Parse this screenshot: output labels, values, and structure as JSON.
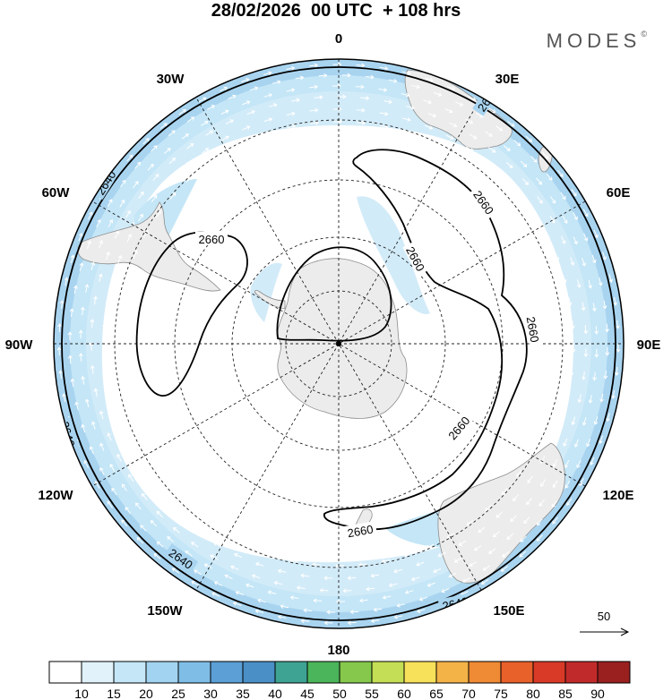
{
  "title": "28/02/2026  00 UTC  + 108 hrs",
  "brand": "MODES",
  "brand_mark": "©",
  "longitude_labels": [
    "0",
    "30E",
    "60E",
    "90E",
    "120E",
    "150E",
    "180",
    "150W",
    "120W",
    "90W",
    "60W",
    "30W"
  ],
  "contours": [
    {
      "value": "2640",
      "level": 2640
    },
    {
      "value": "2660",
      "level": 2660
    }
  ],
  "wind_reference": {
    "label": "50",
    "value": 50
  },
  "colorbar": {
    "labels": [
      "10",
      "15",
      "20",
      "25",
      "30",
      "35",
      "40",
      "45",
      "50",
      "55",
      "60",
      "65",
      "70",
      "75",
      "80",
      "85",
      "90"
    ],
    "colors": [
      "#ffffff",
      "#e1f2fb",
      "#c4e6f7",
      "#a2d3f0",
      "#7fbde6",
      "#5b9fd6",
      "#4a8fc6",
      "#3ea393",
      "#4ab55a",
      "#86c84c",
      "#c4de55",
      "#f7e05a",
      "#f3b347",
      "#ef8a35",
      "#e8602a",
      "#d83a27",
      "#c12a2a",
      "#9a1f1f"
    ]
  },
  "colors": {
    "land": "#ececec",
    "ring_outer": "#a9d4f0",
    "ring_inner": "#d2ebf8",
    "contour": "#000000"
  }
}
